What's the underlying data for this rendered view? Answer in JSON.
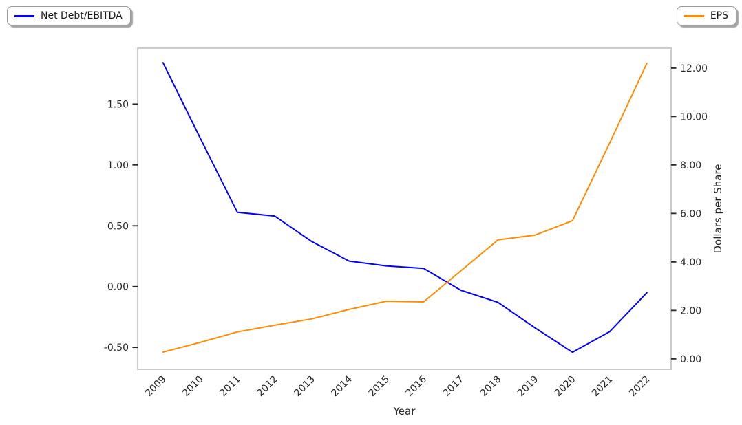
{
  "figure": {
    "background": "#ffffff"
  },
  "legend_left": {
    "label": "Net Debt/EBITDA",
    "line_color": "#0000ff"
  },
  "legend_right": {
    "label": "EPS",
    "line_color": "#ff8c00"
  },
  "chart_data": {
    "type": "line",
    "title": "",
    "xlabel": "Year",
    "right_ylabel": "Dollars per Share",
    "x": [
      2009,
      2010,
      2011,
      2012,
      2013,
      2014,
      2015,
      2016,
      2017,
      2018,
      2019,
      2020,
      2021,
      2022
    ],
    "series": [
      {
        "name": "Net Debt/EBITDA",
        "axis": "left",
        "color": "#0000ff",
        "values": [
          1.84,
          1.22,
          0.61,
          0.58,
          0.37,
          0.21,
          0.17,
          0.15,
          -0.03,
          -0.13,
          -0.34,
          -0.54,
          -0.37,
          -0.05
        ]
      },
      {
        "name": "EPS",
        "axis": "right",
        "color": "#ff8c00",
        "values": [
          0.28,
          0.68,
          1.11,
          1.39,
          1.65,
          2.04,
          2.38,
          2.35,
          3.63,
          4.91,
          5.11,
          5.7,
          8.91,
          12.2
        ]
      }
    ],
    "x_range": [
      2008.32,
      2022.65
    ],
    "left_axis": {
      "ticks": [
        1.5,
        1.0,
        0.5,
        0.0,
        -0.5
      ],
      "range": [
        -0.68,
        1.96
      ],
      "decimals": 2
    },
    "right_axis": {
      "ticks": [
        12,
        10,
        8,
        6,
        4,
        2,
        0
      ],
      "range": [
        -0.43,
        12.82
      ],
      "decimals": 2
    },
    "grid": false,
    "legend_position": [
      "upper-left-outside",
      "upper-right-outside"
    ],
    "frame_color": "#cccccc",
    "tick_color": "#262626",
    "text_color": "#262626"
  }
}
